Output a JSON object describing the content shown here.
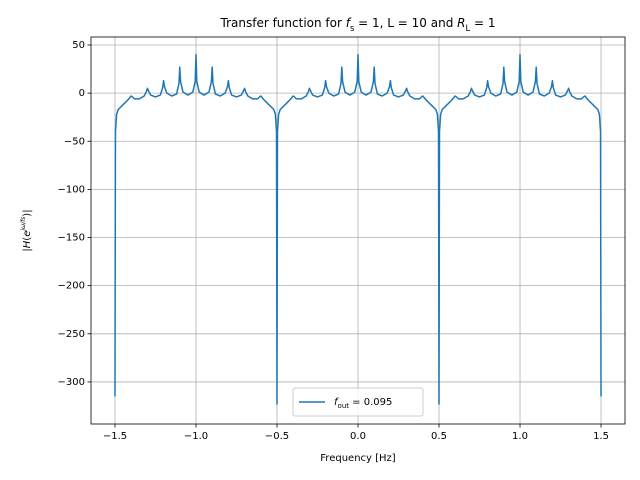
{
  "chart_data": {
    "type": "line",
    "title": [
      {
        "text": "Transfer function for "
      },
      {
        "text": "f",
        "italic": true
      },
      {
        "text": "s",
        "sub": true
      },
      {
        "text": " = 1, L = 10 and "
      },
      {
        "text": "R",
        "italic": true
      },
      {
        "text": "L",
        "sub": true
      },
      {
        "text": " = 1"
      }
    ],
    "x_label": "Frequency [Hz]",
    "y_label": [
      {
        "text": "|"
      },
      {
        "text": "H",
        "italic": true
      },
      {
        "text": "("
      },
      {
        "text": "e",
        "italic": true
      },
      {
        "text": "jω/fs",
        "sup": true
      },
      {
        "text": ")|"
      }
    ],
    "xlim": [
      -1.648,
      1.648
    ],
    "ylim": [
      -343.7,
      58.3
    ],
    "xticks": [
      {
        "value": -1.5,
        "label": "−1.5"
      },
      {
        "value": -1,
        "label": "−1.0"
      },
      {
        "value": -0.5,
        "label": "−0.5"
      },
      {
        "value": 0,
        "label": "0.0"
      },
      {
        "value": 0.5,
        "label": "0.5"
      },
      {
        "value": 1,
        "label": "1.0"
      },
      {
        "value": 1.5,
        "label": "1.5"
      }
    ],
    "yticks": [
      50,
      0,
      {
        "value": -50,
        "label": "−50"
      },
      {
        "value": -100,
        "label": "−100"
      },
      {
        "value": -150,
        "label": "−150"
      },
      {
        "value": -200,
        "label": "−200"
      },
      {
        "value": -250,
        "label": "−250"
      },
      {
        "value": -300,
        "label": "−300"
      }
    ],
    "grid": true,
    "legend_position": "lower center",
    "x": [
      -1.5,
      -1.497,
      -1.49,
      -1.48,
      -1.45,
      -1.42,
      -1.405,
      -1.4,
      -1.395,
      -1.38,
      -1.35,
      -1.32,
      -1.305,
      -1.3,
      -1.295,
      -1.28,
      -1.25,
      -1.22,
      -1.205,
      -1.2,
      -1.195,
      -1.18,
      -1.15,
      -1.12,
      -1.105,
      -1.1,
      -1.095,
      -1.08,
      -1.05,
      -1.02,
      -1.005,
      -1,
      -0.995,
      -0.98,
      -0.95,
      -0.92,
      -0.905,
      -0.9,
      -0.895,
      -0.88,
      -0.85,
      -0.82,
      -0.805,
      -0.8,
      -0.795,
      -0.78,
      -0.75,
      -0.72,
      -0.705,
      -0.7,
      -0.695,
      -0.68,
      -0.65,
      -0.62,
      -0.605,
      -0.6,
      -0.595,
      -0.58,
      -0.55,
      -0.52,
      -0.51,
      -0.503,
      -0.5,
      -0.497,
      -0.49,
      -0.48,
      -0.45,
      -0.42,
      -0.405,
      -0.4,
      -0.395,
      -0.38,
      -0.35,
      -0.32,
      -0.305,
      -0.3,
      -0.295,
      -0.28,
      -0.25,
      -0.22,
      -0.205,
      -0.2,
      -0.195,
      -0.18,
      -0.15,
      -0.12,
      -0.105,
      -0.1,
      -0.095,
      -0.08,
      -0.05,
      -0.02,
      -0.005,
      0,
      0.005,
      0.02,
      0.05,
      0.08,
      0.095,
      0.1,
      0.105,
      0.12,
      0.15,
      0.18,
      0.195,
      0.2,
      0.205,
      0.22,
      0.25,
      0.28,
      0.295,
      0.3,
      0.305,
      0.32,
      0.35,
      0.38,
      0.395,
      0.4,
      0.405,
      0.42,
      0.45,
      0.48,
      0.49,
      0.497,
      0.5,
      0.503,
      0.51,
      0.52,
      0.55,
      0.58,
      0.595,
      0.6,
      0.605,
      0.62,
      0.65,
      0.68,
      0.695,
      0.7,
      0.705,
      0.72,
      0.75,
      0.78,
      0.795,
      0.8,
      0.805,
      0.82,
      0.85,
      0.88,
      0.895,
      0.9,
      0.905,
      0.92,
      0.95,
      0.98,
      0.995,
      1,
      1.005,
      1.02,
      1.05,
      1.08,
      1.095,
      1.1,
      1.105,
      1.12,
      1.15,
      1.18,
      1.195,
      1.2,
      1.205,
      1.22,
      1.25,
      1.28,
      1.295,
      1.3,
      1.305,
      1.32,
      1.35,
      1.38,
      1.395,
      1.4,
      1.405,
      1.42,
      1.45,
      1.48,
      1.49,
      1.497,
      1.5
    ],
    "series": [
      {
        "name": [
          {
            "text": "f",
            "italic": true
          },
          {
            "text": "out",
            "sub": true
          },
          {
            "text": " = 0.095"
          }
        ],
        "color": "#1f77b4",
        "values": [
          -315,
          -40,
          -22,
          -17,
          -12,
          -7,
          -4,
          -3,
          -3.5,
          -6,
          -6,
          -3,
          2,
          5,
          3,
          -2,
          -4,
          -2,
          6,
          13,
          7,
          0,
          -3,
          -1,
          10,
          27,
          12,
          1,
          -2,
          1,
          12,
          40,
          12,
          1,
          -2,
          1,
          12,
          27,
          10,
          -1,
          -3,
          0,
          7,
          13,
          6,
          -2,
          -4,
          -2,
          3,
          5,
          2,
          -3,
          -6,
          -6,
          -3.5,
          -3,
          -4,
          -7,
          -12,
          -17,
          -22,
          -40,
          -323,
          -40,
          -22,
          -17,
          -12,
          -7,
          -4,
          -3,
          -3.5,
          -6,
          -6,
          -3,
          2,
          5,
          3,
          -2,
          -4,
          -2,
          6,
          13,
          7,
          0,
          -3,
          -1,
          10,
          27,
          12,
          1,
          -2,
          1,
          12,
          40,
          12,
          1,
          -2,
          1,
          12,
          27,
          10,
          -1,
          -3,
          0,
          7,
          13,
          6,
          -2,
          -4,
          -2,
          3,
          5,
          2,
          -3,
          -6,
          -6,
          -3.5,
          -3,
          -4,
          -7,
          -12,
          -17,
          -22,
          -40,
          -323,
          -40,
          -22,
          -17,
          -12,
          -7,
          -4,
          -3,
          -3.5,
          -6,
          -6,
          -3,
          2,
          5,
          3,
          -2,
          -4,
          -2,
          6,
          13,
          7,
          0,
          -3,
          -1,
          10,
          27,
          12,
          1,
          -2,
          1,
          12,
          40,
          12,
          1,
          -2,
          1,
          12,
          27,
          10,
          -1,
          -3,
          0,
          7,
          13,
          6,
          -2,
          -4,
          -2,
          3,
          5,
          2,
          -3,
          -6,
          -6,
          -3.5,
          -3,
          -4,
          -7,
          -12,
          -17,
          -22,
          -40,
          -315
        ]
      }
    ]
  }
}
